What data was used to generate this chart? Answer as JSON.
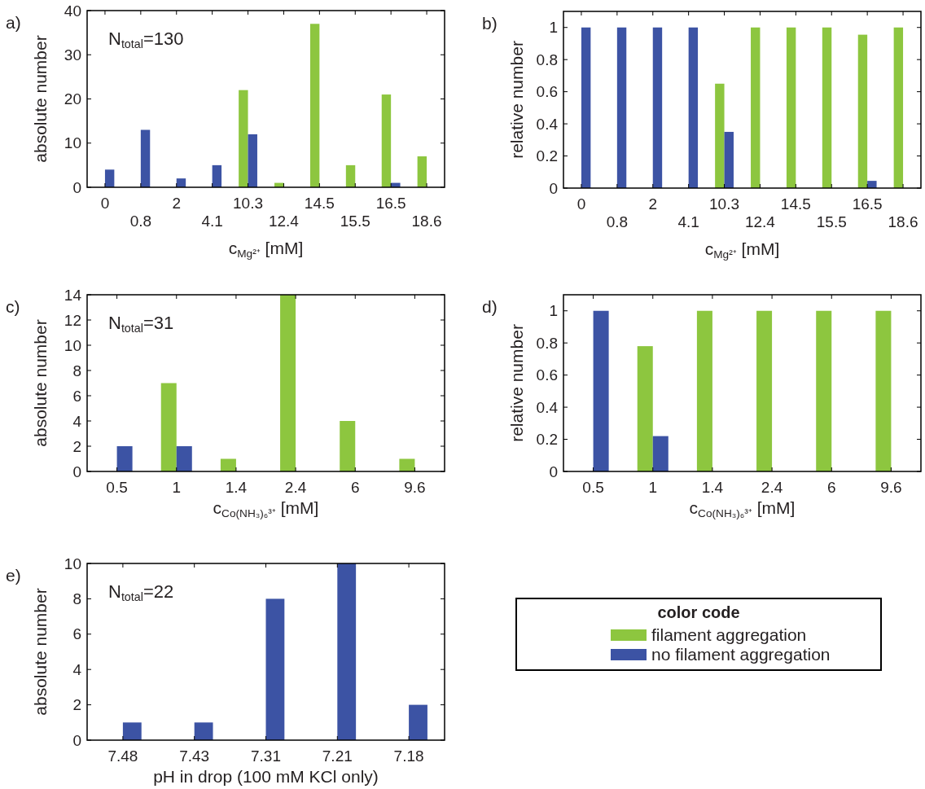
{
  "chart_data": [
    {
      "type": "bar",
      "xlabel": "c$_{Mg²⁺}$ [mM]",
      "ylabel": "absolute number",
      "annotations": [
        "a)",
        "N$_{total}$=130"
      ],
      "categories": [
        "0",
        "0.8",
        "2",
        "4.1",
        "10.3",
        "12.4",
        "14.5",
        "15.5",
        "16.5",
        "18.6"
      ],
      "ylim": [
        0,
        40
      ],
      "yticks": [
        0,
        10,
        20,
        30,
        40
      ],
      "series": [
        {
          "color": "#8dc63f",
          "values": [
            0,
            0,
            0,
            0,
            22,
            1,
            37,
            5,
            21,
            7
          ]
        },
        {
          "color": "#3c53a4",
          "values": [
            4,
            13,
            2,
            5,
            12,
            0,
            0,
            0,
            1,
            0
          ]
        }
      ]
    },
    {
      "type": "bar",
      "xlabel": "c$_{Mg²⁺}$ [mM]",
      "ylabel": "relative number",
      "annotations": [
        "b)"
      ],
      "categories": [
        "0",
        "0.8",
        "2",
        "4.1",
        "10.3",
        "12.4",
        "14.5",
        "15.5",
        "16.5",
        "18.6"
      ],
      "ylim": [
        0,
        1.1
      ],
      "yticks": [
        0,
        0.2,
        0.4,
        0.6,
        0.8,
        1
      ],
      "series": [
        {
          "color": "#8dc63f",
          "values": [
            0,
            0,
            0,
            0,
            0.65,
            1,
            1,
            1,
            0.955,
            1
          ]
        },
        {
          "color": "#3c53a4",
          "values": [
            1,
            1,
            1,
            1,
            0.35,
            0,
            0,
            0,
            0.045,
            0
          ]
        }
      ]
    },
    {
      "type": "bar",
      "xlabel": "c$_{Co(NH₃)₆³⁺}$ [mM]",
      "ylabel": "absolute number",
      "annotations": [
        "c)",
        "N$_{total}$=31"
      ],
      "categories": [
        "0.5",
        "1",
        "1.4",
        "2.4",
        "6",
        "9.6"
      ],
      "ylim": [
        0,
        14
      ],
      "yticks": [
        0,
        2,
        4,
        6,
        8,
        10,
        12,
        14
      ],
      "series": [
        {
          "color": "#8dc63f",
          "values": [
            0,
            7,
            1,
            14,
            4,
            1
          ]
        },
        {
          "color": "#3c53a4",
          "values": [
            2,
            2,
            0,
            0,
            0,
            0
          ]
        }
      ]
    },
    {
      "type": "bar",
      "xlabel": "c$_{Co(NH₃)₆³⁺}$ [mM]",
      "ylabel": "relative number",
      "annotations": [
        "d)"
      ],
      "categories": [
        "0.5",
        "1",
        "1.4",
        "2.4",
        "6",
        "9.6"
      ],
      "ylim": [
        0,
        1.1
      ],
      "yticks": [
        0,
        0.2,
        0.4,
        0.6,
        0.8,
        1
      ],
      "series": [
        {
          "color": "#8dc63f",
          "values": [
            0,
            0.78,
            1,
            1,
            1,
            1
          ]
        },
        {
          "color": "#3c53a4",
          "values": [
            1,
            0.22,
            0,
            0,
            0,
            0
          ]
        }
      ]
    },
    {
      "type": "bar",
      "xlabel": "pH in drop (100 mM KCl only)",
      "ylabel": "absolute number",
      "annotations": [
        "e)",
        "N$_{total}$=22"
      ],
      "categories": [
        "7.48",
        "7.43",
        "7.31",
        "7.21",
        "7.18"
      ],
      "ylim": [
        0,
        10
      ],
      "yticks": [
        0,
        2,
        4,
        6,
        8,
        10
      ],
      "legend": "right",
      "legend_title": "color code",
      "series": [
        {
          "name": "filament aggregation",
          "color": "#8dc63f",
          "values": [
            0,
            0,
            0,
            0,
            0
          ]
        },
        {
          "name": "no filament aggregation",
          "color": "#3c53a4",
          "values": [
            1,
            1,
            8,
            10,
            2
          ]
        }
      ]
    }
  ]
}
